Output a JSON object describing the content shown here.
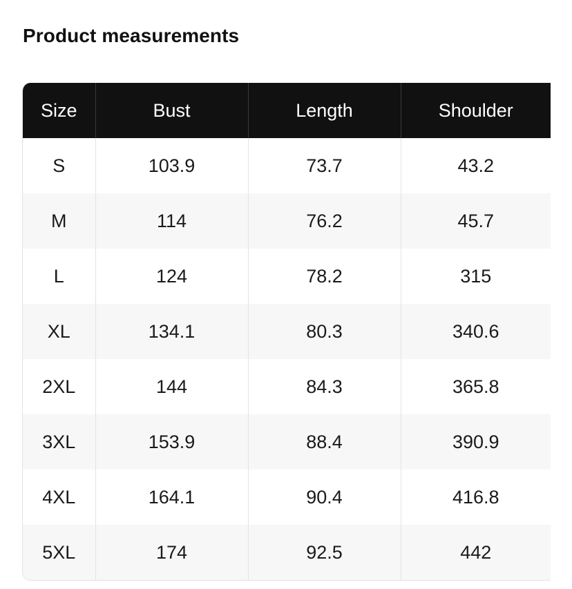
{
  "title": "Product measurements",
  "table": {
    "columns": [
      "Size",
      "Bust",
      "Length",
      "Shoulder"
    ],
    "rows": [
      [
        "S",
        "103.9",
        "73.7",
        "43.2"
      ],
      [
        "M",
        "114",
        "76.2",
        "45.7"
      ],
      [
        "L",
        "124",
        "78.2",
        "315"
      ],
      [
        "XL",
        "134.1",
        "80.3",
        "340.6"
      ],
      [
        "2XL",
        "144",
        "84.3",
        "365.8"
      ],
      [
        "3XL",
        "153.9",
        "88.4",
        "390.9"
      ],
      [
        "4XL",
        "164.1",
        "90.4",
        "416.8"
      ],
      [
        "5XL",
        "174",
        "92.5",
        "442"
      ]
    ]
  }
}
